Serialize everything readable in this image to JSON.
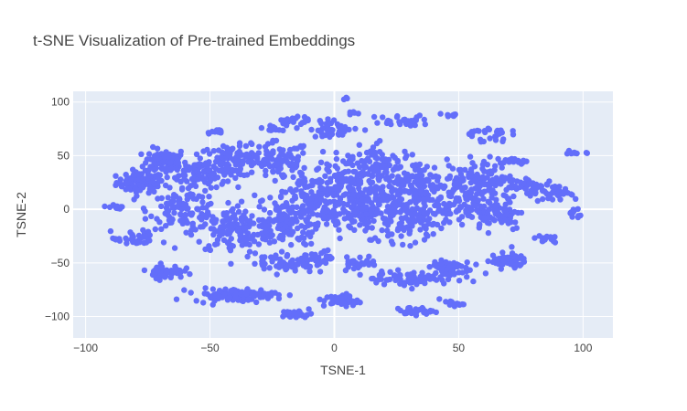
{
  "chart_data": {
    "type": "scatter",
    "title": "t-SNE Visualization of Pre-trained Embeddings",
    "xlabel": "TSNE-1",
    "ylabel": "TSNE-2",
    "xlim": [
      -105,
      112
    ],
    "ylim": [
      -120,
      110
    ],
    "x_ticks": [
      -100,
      -50,
      0,
      50,
      100
    ],
    "y_ticks": [
      -100,
      -50,
      0,
      50,
      100
    ],
    "grid": true,
    "legend": "none",
    "colors": {
      "marker": "#636efa",
      "plot_background": "#e5ecf6",
      "grid": "#ffffff",
      "text": "#444444"
    },
    "series": [
      {
        "clusters": [
          {
            "cx": -78,
            "cy": 25,
            "rx": 8,
            "ry": 8,
            "n": 90
          },
          {
            "cx": -68,
            "cy": 45,
            "rx": 7,
            "ry": 10,
            "n": 70
          },
          {
            "cx": -55,
            "cy": 35,
            "rx": 10,
            "ry": 12,
            "n": 90
          },
          {
            "cx": -40,
            "cy": 45,
            "rx": 12,
            "ry": 12,
            "n": 90
          },
          {
            "cx": -22,
            "cy": 45,
            "rx": 10,
            "ry": 15,
            "n": 90
          },
          {
            "cx": -60,
            "cy": 0,
            "rx": 12,
            "ry": 15,
            "n": 110
          },
          {
            "cx": -40,
            "cy": -20,
            "rx": 14,
            "ry": 18,
            "n": 140
          },
          {
            "cx": -20,
            "cy": -10,
            "rx": 12,
            "ry": 20,
            "n": 130
          },
          {
            "cx": -8,
            "cy": 10,
            "rx": 10,
            "ry": 25,
            "n": 110
          },
          {
            "cx": 5,
            "cy": 20,
            "rx": 10,
            "ry": 25,
            "n": 130
          },
          {
            "cx": 20,
            "cy": 35,
            "rx": 12,
            "ry": 20,
            "n": 110
          },
          {
            "cx": 15,
            "cy": 0,
            "rx": 12,
            "ry": 20,
            "n": 130
          },
          {
            "cx": 30,
            "cy": -10,
            "rx": 12,
            "ry": 18,
            "n": 110
          },
          {
            "cx": 35,
            "cy": 25,
            "rx": 10,
            "ry": 18,
            "n": 90
          },
          {
            "cx": 50,
            "cy": 10,
            "rx": 12,
            "ry": 22,
            "n": 120
          },
          {
            "cx": 60,
            "cy": 30,
            "rx": 10,
            "ry": 15,
            "n": 70
          },
          {
            "cx": 65,
            "cy": -5,
            "rx": 10,
            "ry": 12,
            "n": 70
          },
          {
            "cx": 80,
            "cy": 20,
            "rx": 10,
            "ry": 8,
            "n": 60
          },
          {
            "cx": 90,
            "cy": 15,
            "rx": 6,
            "ry": 6,
            "n": 25
          },
          {
            "cx": -68,
            "cy": -58,
            "rx": 6,
            "ry": 5,
            "n": 60
          },
          {
            "cx": -40,
            "cy": -80,
            "rx": 14,
            "ry": 5,
            "n": 100
          },
          {
            "cx": -15,
            "cy": -98,
            "rx": 5,
            "ry": 3,
            "n": 35
          },
          {
            "cx": 3,
            "cy": -85,
            "rx": 6,
            "ry": 5,
            "n": 45
          },
          {
            "cx": 32,
            "cy": -95,
            "rx": 6,
            "ry": 3,
            "n": 30
          },
          {
            "cx": 47,
            "cy": -88,
            "rx": 4,
            "ry": 2,
            "n": 14
          },
          {
            "cx": 30,
            "cy": -65,
            "rx": 12,
            "ry": 6,
            "n": 60
          },
          {
            "cx": 45,
            "cy": -55,
            "rx": 8,
            "ry": 8,
            "n": 60
          },
          {
            "cx": 70,
            "cy": -48,
            "rx": 6,
            "ry": 6,
            "n": 55
          },
          {
            "cx": 85,
            "cy": -28,
            "rx": 4,
            "ry": 3,
            "n": 14
          },
          {
            "cx": -80,
            "cy": -28,
            "rx": 8,
            "ry": 6,
            "n": 35
          },
          {
            "cx": -20,
            "cy": -50,
            "rx": 10,
            "ry": 8,
            "n": 60
          },
          {
            "cx": -5,
            "cy": -45,
            "rx": 6,
            "ry": 5,
            "n": 25
          },
          {
            "cx": 10,
            "cy": -50,
            "rx": 6,
            "ry": 6,
            "n": 30
          },
          {
            "cx": 0,
            "cy": 75,
            "rx": 8,
            "ry": 7,
            "n": 40
          },
          {
            "cx": 28,
            "cy": 82,
            "rx": 10,
            "ry": 5,
            "n": 30
          },
          {
            "cx": -17,
            "cy": 83,
            "rx": 5,
            "ry": 4,
            "n": 20
          },
          {
            "cx": -25,
            "cy": 75,
            "rx": 3,
            "ry": 2,
            "n": 10
          },
          {
            "cx": -48,
            "cy": 73,
            "rx": 3,
            "ry": 2,
            "n": 10
          },
          {
            "cx": 48,
            "cy": 88,
            "rx": 3,
            "ry": 2,
            "n": 8
          },
          {
            "cx": 60,
            "cy": 70,
            "rx": 8,
            "ry": 6,
            "n": 30
          },
          {
            "cx": 72,
            "cy": 45,
            "rx": 6,
            "ry": 3,
            "n": 18
          },
          {
            "cx": -88,
            "cy": 2,
            "rx": 3,
            "ry": 2,
            "n": 14
          },
          {
            "cx": 97,
            "cy": 53,
            "rx": 3,
            "ry": 2,
            "n": 10
          },
          {
            "cx": 97,
            "cy": -5,
            "rx": 2,
            "ry": 5,
            "n": 10
          },
          {
            "cx": 5,
            "cy": 103,
            "rx": 1.5,
            "ry": 1,
            "n": 4
          },
          {
            "cx": 8,
            "cy": 90,
            "rx": 2,
            "ry": 2,
            "n": 5
          }
        ]
      }
    ]
  }
}
